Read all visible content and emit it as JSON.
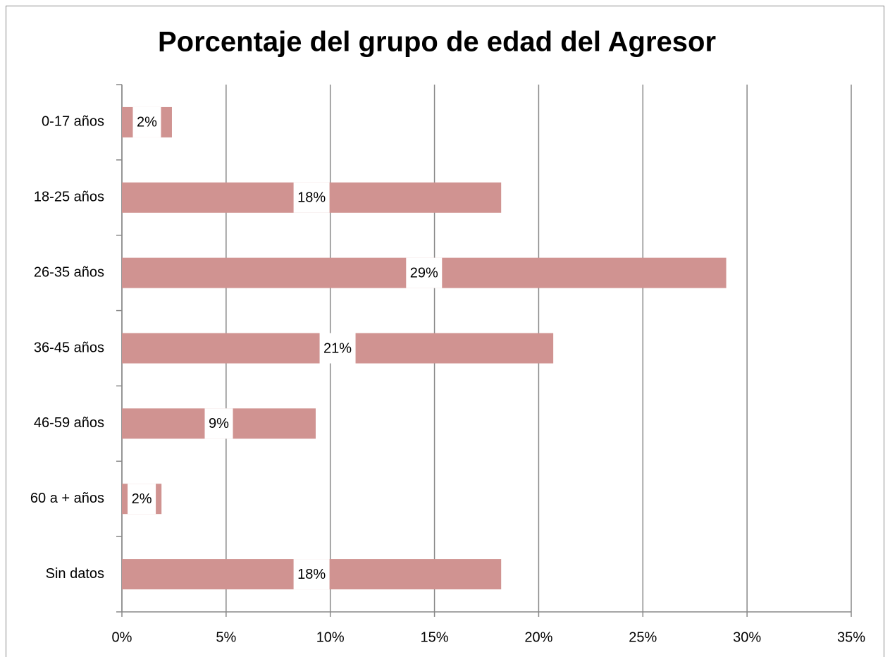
{
  "chart_data": {
    "type": "barh",
    "title": "Porcentaje del grupo de edad del Agresor",
    "categories": [
      "0-17 años",
      "18-25 años",
      "26-35 años",
      "36-45 años",
      "46-59 años",
      "60 a + años",
      "Sin datos"
    ],
    "values": [
      2.4,
      18.2,
      29.0,
      20.7,
      9.3,
      1.9,
      18.2
    ],
    "value_labels": [
      "2%",
      "18%",
      "29%",
      "21%",
      "9%",
      "2%",
      "18%"
    ],
    "color": "#d09391",
    "xlim": [
      0,
      35
    ],
    "xticks": [
      {
        "value": 0,
        "label": "0%"
      },
      {
        "value": 5,
        "label": "5%"
      },
      {
        "value": 10,
        "label": "10%"
      },
      {
        "value": 15,
        "label": "15%"
      },
      {
        "value": 20,
        "label": "20%"
      },
      {
        "value": 25,
        "label": "25%"
      },
      {
        "value": 30,
        "label": "30%"
      },
      {
        "value": 35,
        "label": "35%"
      }
    ],
    "grid": true
  }
}
